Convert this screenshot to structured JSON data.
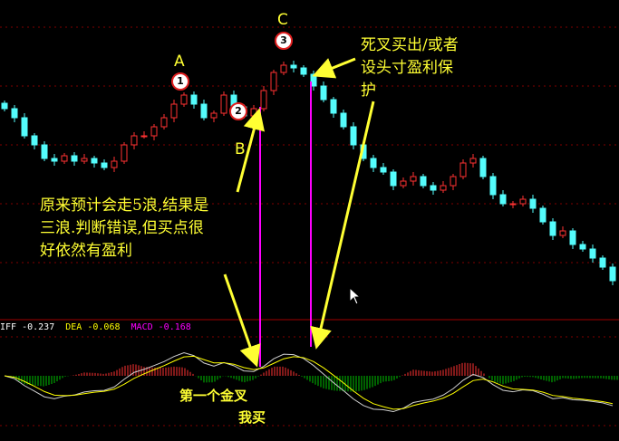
{
  "chart_data": {
    "type": "candlestick",
    "title": "",
    "grid": true,
    "closes": [
      280,
      270,
      250,
      240,
      225,
      222,
      228,
      222,
      225,
      220,
      215,
      222,
      240,
      250,
      250,
      260,
      270,
      285,
      295,
      285,
      270,
      275,
      295,
      282,
      272,
      280,
      300,
      320,
      328,
      325,
      318,
      305,
      290,
      275,
      260,
      240,
      225,
      215,
      210,
      195,
      200,
      205,
      195,
      190,
      195,
      205,
      220,
      225,
      205,
      185,
      175,
      175,
      180,
      170,
      155,
      140,
      145,
      130,
      125,
      115,
      105,
      90
    ],
    "indicator": {
      "diff_label": "IFF",
      "diff_value": "-0.237",
      "dea_label": "DEA",
      "dea_value": "-0.068",
      "macd_label": "MACD",
      "macd_value": "-0.168"
    },
    "wave_labels": [
      {
        "letter": "A",
        "number": "1"
      },
      {
        "letter": "B",
        "number": "2"
      },
      {
        "letter": "C",
        "number": "3"
      }
    ],
    "annotations": {
      "expectation": [
        "原来预计会走5浪,结果是",
        "三浪.判断错误,但买点很",
        "好依然有盈利"
      ],
      "sell": [
        "死叉买出/或者",
        "设头寸盈利保",
        "护"
      ],
      "buy": [
        "第一个金叉",
        "我买"
      ]
    },
    "colors": {
      "up": "#ff3232",
      "down": "#54fcfc",
      "diff": "#ffffff",
      "dea": "#ffff00",
      "macd": "#ff00ff",
      "annotation": "#ffff33",
      "marker_line": "#ff00ff",
      "grid": "#800000"
    }
  }
}
